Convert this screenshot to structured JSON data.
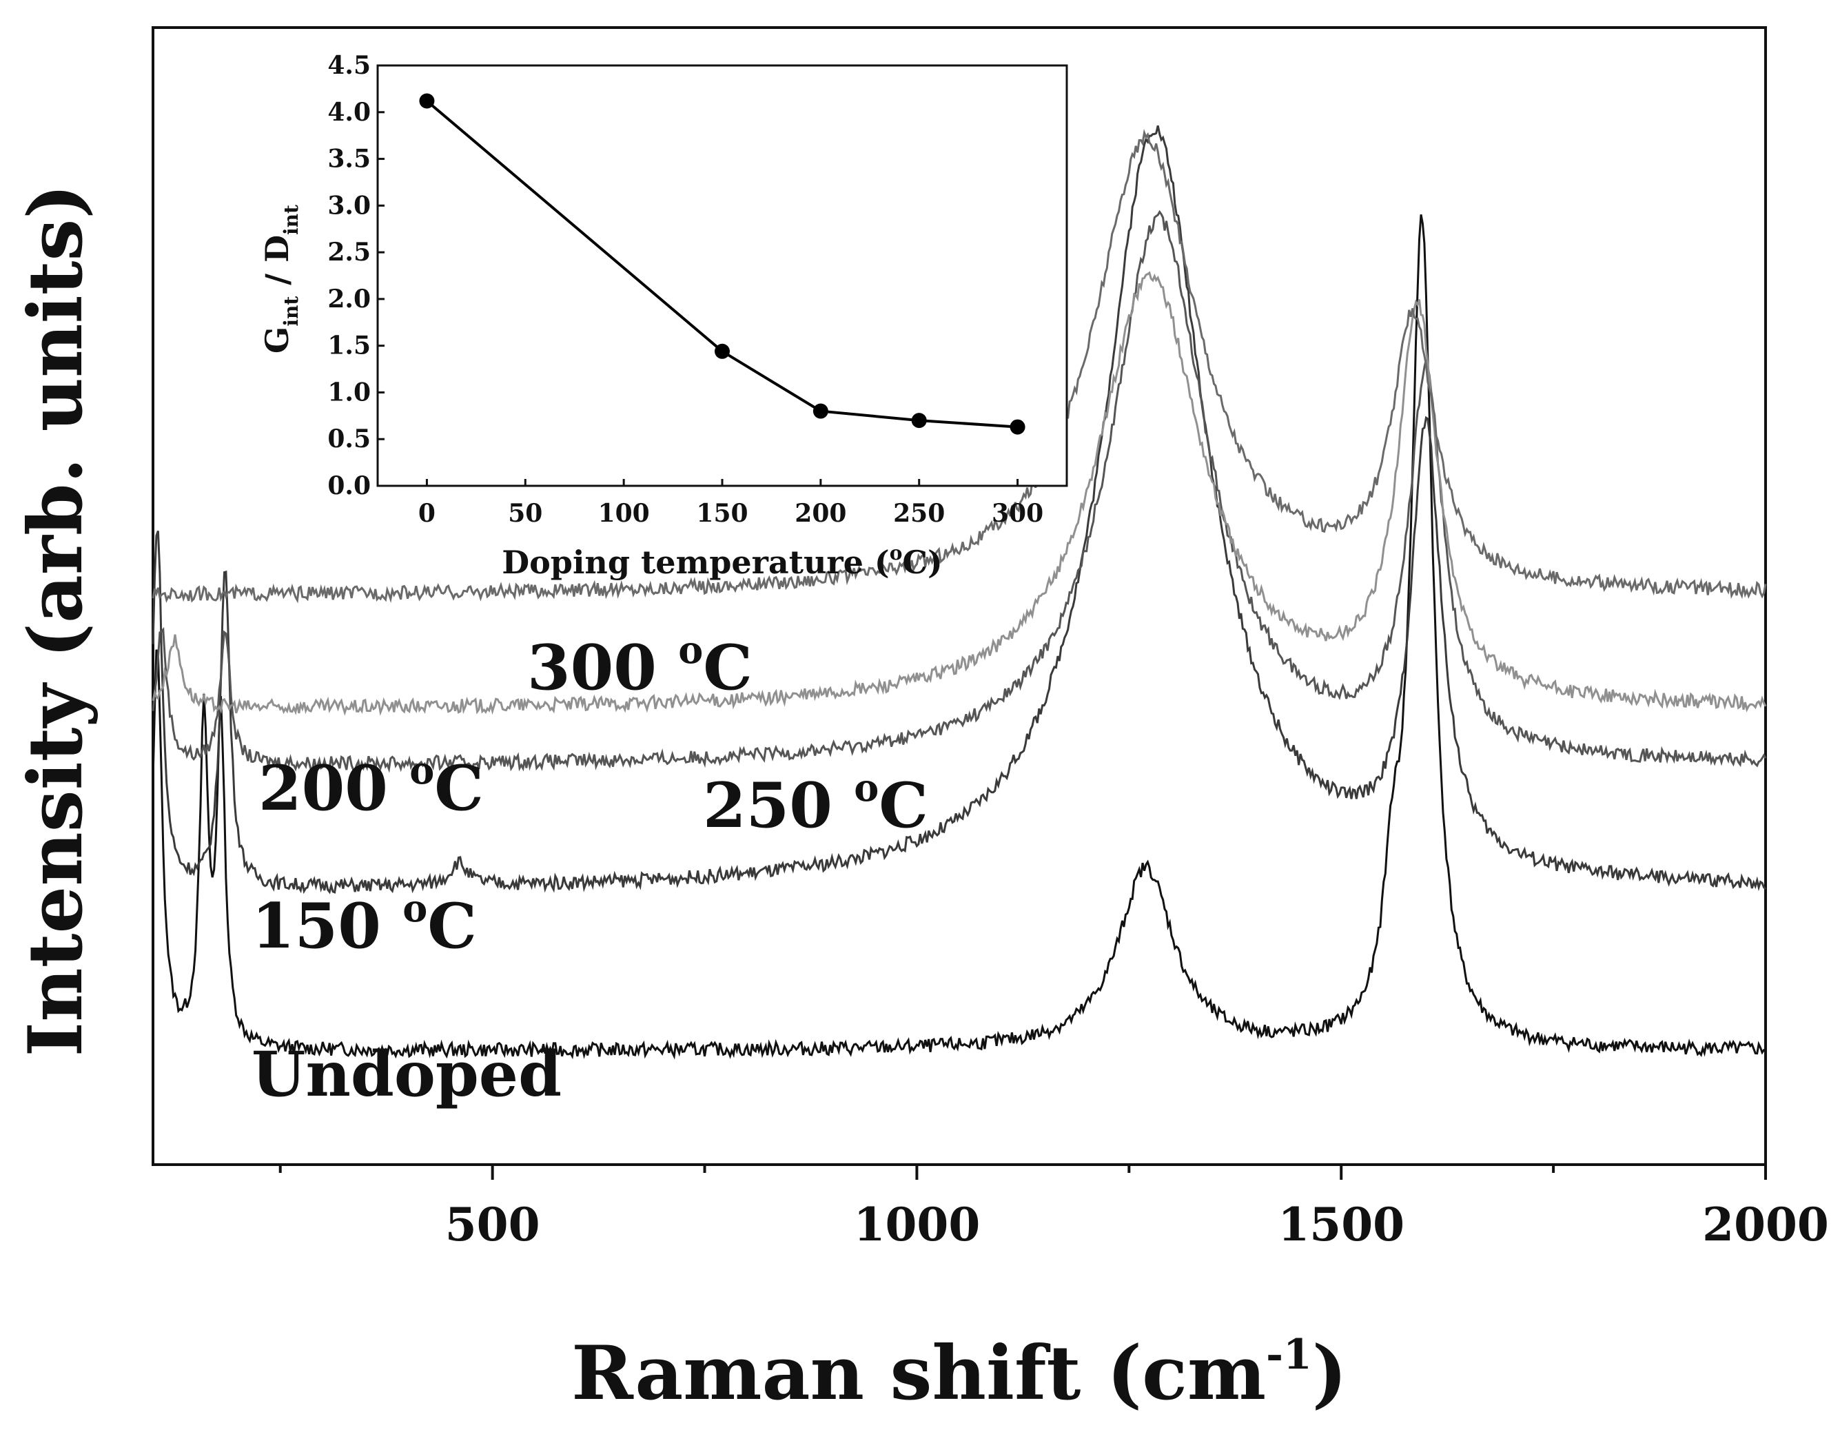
{
  "chart_data": [
    {
      "type": "line",
      "title": "",
      "xlabel": "Raman shift (cm",
      "xlabel_sup": "-1",
      "xlabel_end": ")",
      "ylabel": "Intensity (arb. units)",
      "xlim": [
        100,
        2000
      ],
      "x_ticks": [
        500,
        1000,
        1500,
        2000
      ],
      "x_tick_labels": [
        "500",
        "1000",
        "1500",
        "2000"
      ],
      "y_ticks_shown": false,
      "series": [
        {
          "name": "Undoped",
          "label_prefix": "Undoped",
          "label_sup": "",
          "label_suffix": "",
          "color": "#111111",
          "baseline": 0.1,
          "peaks": [
            [
              105,
              0.35,
              7
            ],
            [
              160,
              0.28,
              6
            ],
            [
              180,
              0.28,
              6
            ],
            [
              1270,
              0.16,
              40
            ],
            [
              1560,
              0.1,
              12
            ],
            [
              1595,
              0.72,
              16
            ]
          ]
        },
        {
          "name": "150 °C",
          "label_prefix": "150 ",
          "label_sup": "o",
          "label_suffix": "C",
          "color": "#3a3a3a",
          "baseline": 0.24,
          "peaks": [
            [
              105,
              0.32,
              7
            ],
            [
              185,
              0.28,
              7
            ],
            [
              460,
              0.02,
              12
            ],
            [
              1280,
              0.67,
              75
            ],
            [
              1600,
              0.38,
              22
            ]
          ]
        },
        {
          "name": "200 °C",
          "label_prefix": "200 ",
          "label_sup": "o",
          "label_suffix": "C",
          "color": "#555555",
          "baseline": 0.35,
          "peaks": [
            [
              110,
              0.12,
              8
            ],
            [
              185,
              0.12,
              7
            ],
            [
              1285,
              0.48,
              70
            ],
            [
              1600,
              0.33,
              25
            ]
          ]
        },
        {
          "name": "250 °C",
          "label_prefix": "250 ",
          "label_sup": "o",
          "label_suffix": "C",
          "color": "#909090",
          "baseline": 0.4,
          "peaks": [
            [
              125,
              0.06,
              10
            ],
            [
              1275,
              0.38,
              75
            ],
            [
              1590,
              0.34,
              28
            ]
          ]
        },
        {
          "name": "300 °C",
          "label_prefix": "300 ",
          "label_sup": "o",
          "label_suffix": "C",
          "color": "#6a6a6a",
          "baseline": 0.5,
          "peaks": [
            [
              1270,
              0.4,
              75
            ],
            [
              1585,
              0.23,
              30
            ]
          ]
        }
      ]
    },
    {
      "type": "line",
      "title": "",
      "xlabel": "Doping temperature (",
      "xlabel_sup": "o",
      "xlabel_end": "C)",
      "ylabel_main": "G",
      "ylabel_sub1": "int",
      "ylabel_mid": " / D",
      "ylabel_sub2": "int",
      "xlim": [
        -25,
        325
      ],
      "ylim": [
        0.0,
        4.5
      ],
      "x_ticks": [
        0,
        50,
        100,
        150,
        200,
        250,
        300
      ],
      "y_ticks": [
        0.0,
        0.5,
        1.0,
        1.5,
        2.0,
        2.5,
        3.0,
        3.5,
        4.0,
        4.5
      ],
      "x": [
        0,
        150,
        200,
        250,
        300
      ],
      "y": [
        4.12,
        1.44,
        0.8,
        0.7,
        0.63
      ],
      "marker": "filled-circle",
      "color": "#000000"
    }
  ]
}
